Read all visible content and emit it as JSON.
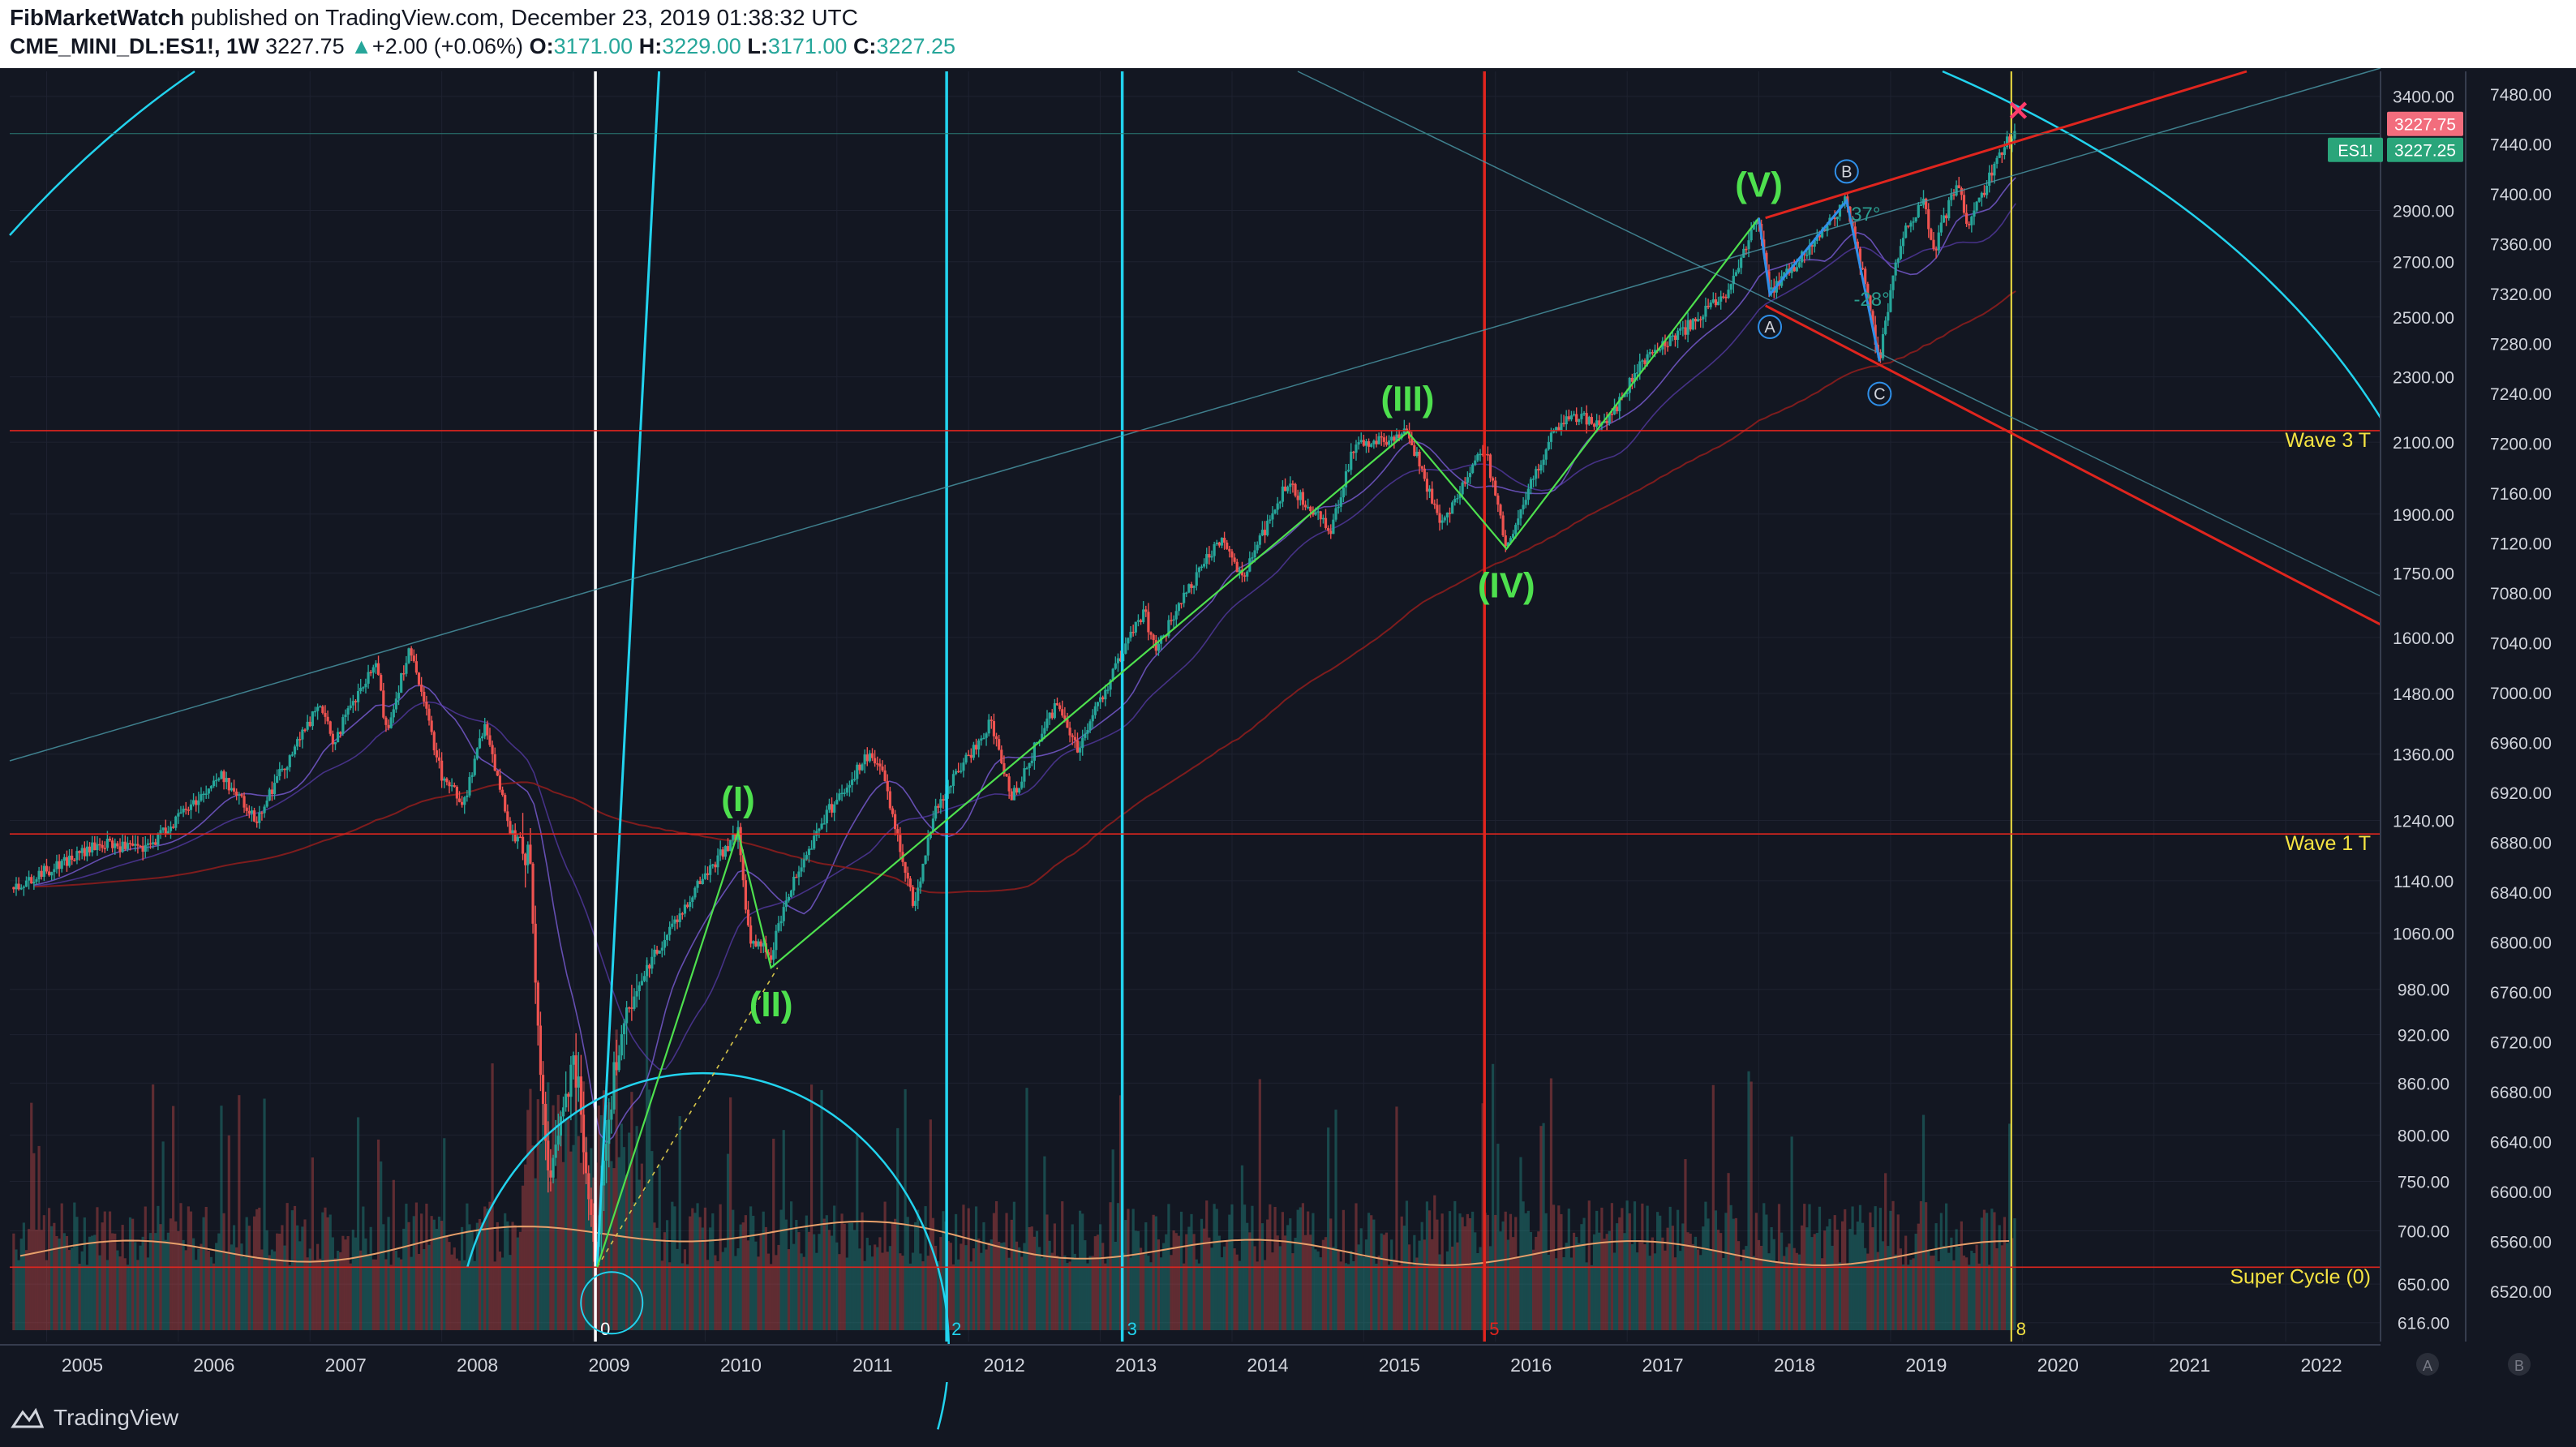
{
  "header": {
    "author": "FibMarketWatch",
    "published_text": "published on TradingView.com, December 23, 2019 01:38:32 UTC",
    "symbol": "CME_MINI_DL:ES1!, 1W",
    "last": "3227.75",
    "change": "+2.00 (+0.06%)",
    "o_label": "O:",
    "o_value": "3171.00",
    "h_label": "H:",
    "h_value": "3229.00",
    "l_label": "L:",
    "l_value": "3171.00",
    "c_label": "C:",
    "c_value": "3227.25"
  },
  "footer": {
    "brand": "TradingView"
  },
  "colors": {
    "background": "#131722",
    "up": "#26a69a",
    "down": "#ef5350",
    "cyan": "#22d3ee",
    "red_line": "#e0251e",
    "yellow": "#f5e342",
    "green_wave": "#4ee04e"
  },
  "chart_data": {
    "type": "line",
    "title": "CME_MINI_DL:ES1!, 1W",
    "x_axis": {
      "type": "date",
      "range": [
        "2004-09",
        "2022-09"
      ],
      "tick_labels": [
        "2005",
        "2006",
        "2007",
        "2008",
        "2009",
        "2010",
        "2011",
        "2012",
        "2013",
        "2014",
        "2015",
        "2016",
        "2017",
        "2018",
        "2019",
        "2020",
        "2021",
        "2022"
      ]
    },
    "y_axis_left": {
      "scale": "log",
      "tick_labels": [
        "3400.00",
        "2900.00",
        "2700.00",
        "2500.00",
        "2300.00",
        "2100.00",
        "1900.00",
        "1750.00",
        "1600.00",
        "1480.00",
        "1360.00",
        "1240.00",
        "1140.00",
        "1060.00",
        "980.00",
        "920.00",
        "860.00",
        "800.00",
        "750.00",
        "700.00",
        "650.00",
        "616.00"
      ]
    },
    "y_axis_right": {
      "tick_labels": [
        "7480.00",
        "7440.00",
        "7400.00",
        "7360.00",
        "7320.00",
        "7280.00",
        "7240.00",
        "7200.00",
        "7160.00",
        "7120.00",
        "7080.00",
        "7040.00",
        "7000.00",
        "6960.00",
        "6920.00",
        "6880.00",
        "6840.00",
        "6800.00",
        "6760.00",
        "6720.00",
        "6680.00",
        "6640.00",
        "6600.00",
        "6560.00",
        "6520.00"
      ]
    },
    "series": [
      {
        "name": "ES1!",
        "x": [
          "2004-10",
          "2005-06",
          "2005-10",
          "2006-05",
          "2006-08",
          "2007-02",
          "2007-03",
          "2007-07",
          "2007-08",
          "2007-10",
          "2008-01",
          "2008-03",
          "2008-05",
          "2008-07",
          "2008-09",
          "2008-10",
          "2008-11",
          "2009-01",
          "2009-03",
          "2009-05",
          "2009-08",
          "2009-10",
          "2010-01",
          "2010-04",
          "2010-05",
          "2010-07",
          "2010-09",
          "2010-12",
          "2011-04",
          "2011-05",
          "2011-08",
          "2011-10",
          "2012-03",
          "2012-05",
          "2012-09",
          "2012-11",
          "2013-05",
          "2013-06",
          "2013-12",
          "2014-02",
          "2014-06",
          "2014-10",
          "2014-12",
          "2015-05",
          "2015-08",
          "2015-12",
          "2016-02",
          "2016-06",
          "2016-08",
          "2016-11",
          "2017-03",
          "2017-06",
          "2017-10",
          "2018-01",
          "2018-02",
          "2018-06",
          "2018-09",
          "2018-12",
          "2019-02",
          "2019-04",
          "2019-05",
          "2019-07",
          "2019-08",
          "2019-10",
          "2019-12"
        ],
        "values": [
          1130,
          1200,
          1190,
          1320,
          1240,
          1460,
          1380,
          1540,
          1400,
          1575,
          1320,
          1270,
          1420,
          1230,
          1180,
          850,
          750,
          900,
          680,
          900,
          1020,
          1070,
          1150,
          1220,
          1050,
          1030,
          1140,
          1250,
          1360,
          1330,
          1100,
          1260,
          1420,
          1280,
          1460,
          1370,
          1660,
          1570,
          1840,
          1740,
          1980,
          1860,
          2080,
          2130,
          1870,
          2090,
          1810,
          2110,
          2180,
          2150,
          2380,
          2450,
          2580,
          2870,
          2580,
          2770,
          2940,
          2350,
          2800,
          2940,
          2740,
          3020,
          2850,
          3030,
          3227
        ]
      }
    ],
    "levels": [
      {
        "label": "Wave 3 T",
        "value": "2134.00"
      },
      {
        "label": "Wave 1 T",
        "value": "1216.75"
      },
      {
        "label": "Super Cycle (0)",
        "value": "665.50"
      }
    ],
    "price_tags": [
      {
        "label": "",
        "value": "3227.75"
      },
      {
        "label": "ES1!",
        "value": "3227.25"
      }
    ],
    "wave_labels": [
      {
        "text": "(I)",
        "date": "2010-04",
        "value": 1220
      },
      {
        "text": "(II)",
        "date": "2010-07",
        "value": 1010
      },
      {
        "text": "(III)",
        "date": "2015-05",
        "value": 2130
      },
      {
        "text": "(IV)",
        "date": "2016-02",
        "value": 1810
      },
      {
        "text": "(V)",
        "date": "2018-01",
        "value": 2870
      }
    ],
    "abc_labels": [
      {
        "text": "A",
        "date": "2018-02",
        "value": 2580
      },
      {
        "text": "B",
        "date": "2018-09",
        "value": 2940
      },
      {
        "text": "C",
        "date": "2018-12",
        "value": 2350
      }
    ],
    "angle_labels": [
      "37°",
      "-28°"
    ],
    "cycle_markers": [
      {
        "label": "0",
        "date": "2009-03",
        "color": "#ffffff"
      },
      {
        "label": "2",
        "date": "2011-11",
        "color": "#22d3ee"
      },
      {
        "label": "3",
        "date": "2013-03",
        "color": "#22d3ee"
      },
      {
        "label": "5",
        "date": "2015-12",
        "color": "#e0251e"
      },
      {
        "label": "8",
        "date": "2019-12",
        "color": "#f5e342"
      }
    ],
    "corner_labels": [
      "A",
      "B"
    ],
    "grid": true,
    "volume_panel": true,
    "legend": "none"
  }
}
